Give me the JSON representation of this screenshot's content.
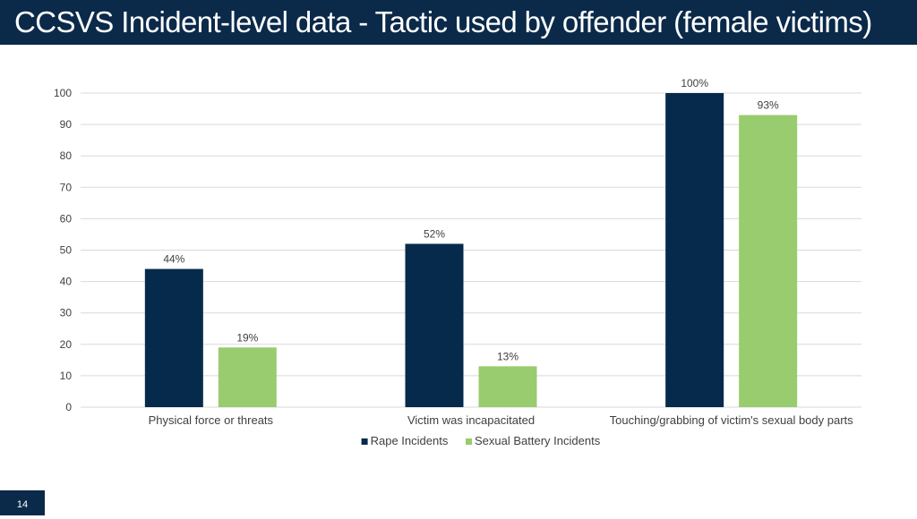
{
  "slide": {
    "title": "CCSVS Incident-level data - Tactic used by offender (female victims)",
    "page_number": "14"
  },
  "colors": {
    "header_bg": "#0b2a4a",
    "rape": "#062a4b",
    "sexual_battery": "#99cc6e",
    "gridline": "#d9d9d9",
    "text": "#404040"
  },
  "chart_data": {
    "type": "bar",
    "title": "",
    "xlabel": "",
    "ylabel": "",
    "categories": [
      "Physical force or threats",
      "Victim was incapacitated",
      "Touching/grabbing of victim's sexual body parts"
    ],
    "series": [
      {
        "name": "Rape Incidents",
        "values": [
          44,
          52,
          100
        ],
        "labels": [
          "44%",
          "52%",
          "100%"
        ],
        "color": "#062a4b"
      },
      {
        "name": "Sexual Battery Incidents",
        "values": [
          19,
          13,
          93
        ],
        "labels": [
          "19%",
          "13%",
          "93%"
        ],
        "color": "#99cc6e"
      }
    ],
    "ylim": [
      0,
      100
    ],
    "yticks": [
      0,
      10,
      20,
      30,
      40,
      50,
      60,
      70,
      80,
      90,
      100
    ],
    "grid": true,
    "legend": "bottom-center"
  }
}
